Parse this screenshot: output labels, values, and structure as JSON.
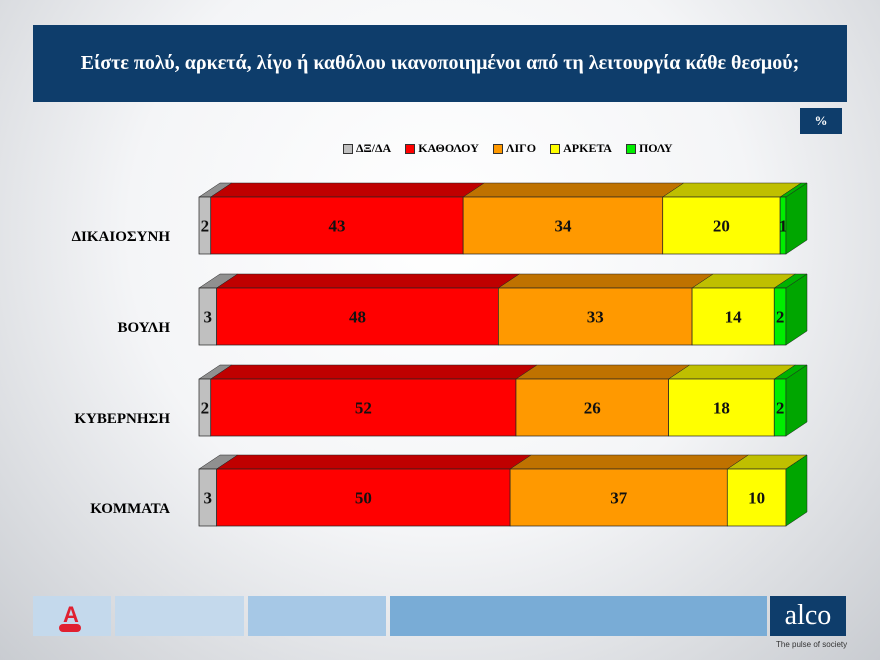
{
  "title": "Είστε πολύ, αρκετά, λίγο ή καθόλου ικανοποιημένοι από τη λειτουργία κάθε θεσμού;",
  "unit_badge": "%",
  "footer": {
    "brand": "alco",
    "tagline": "The pulse of society"
  },
  "chart_data": {
    "type": "bar",
    "orientation": "horizontal",
    "stacked": true,
    "three_d": true,
    "categories": [
      "ΔΙΚΑΙΟΣΥΝΗ",
      "ΒΟΥΛΗ",
      "ΚΥΒΕΡΝΗΣΗ",
      "ΚΟΜΜΑΤΑ"
    ],
    "legend_position": "top",
    "series": [
      {
        "name": "ΔΞ/ΔΑ",
        "color": "#c0c0c0",
        "values": [
          2,
          3,
          2,
          3
        ]
      },
      {
        "name": "ΚΑΘΟΛΟΥ",
        "color": "#ff0000",
        "values": [
          43,
          48,
          52,
          50
        ]
      },
      {
        "name": "ΛΙΓΟ",
        "color": "#ff9900",
        "values": [
          34,
          33,
          26,
          37
        ]
      },
      {
        "name": "ΑΡΚΕΤΑ",
        "color": "#ffff00",
        "values": [
          20,
          14,
          18,
          10
        ]
      },
      {
        "name": "ΠΟΛΥ",
        "color": "#00ee00",
        "values": [
          1,
          2,
          2,
          0
        ]
      }
    ]
  }
}
